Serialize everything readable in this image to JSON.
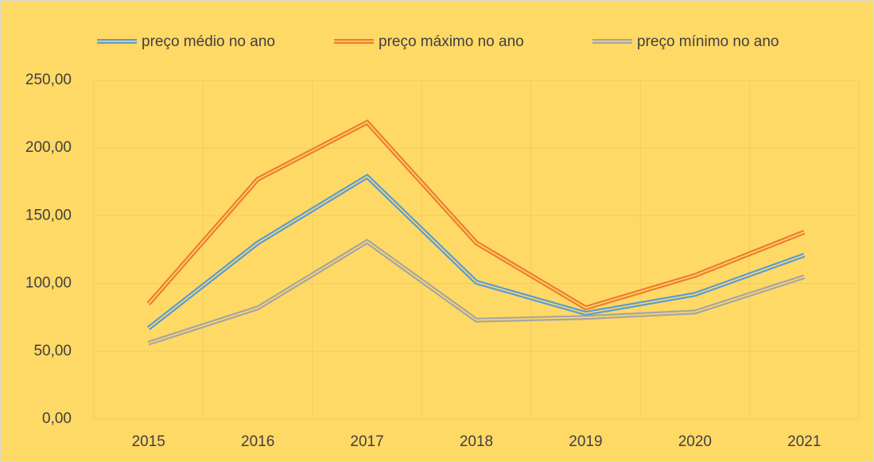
{
  "chart_data": {
    "type": "line",
    "categories": [
      "2015",
      "2016",
      "2017",
      "2018",
      "2019",
      "2020",
      "2021"
    ],
    "series": [
      {
        "name": "preço médio no ano",
        "color": "#5b9bd5",
        "values": [
          67,
          130,
          179,
          101,
          78,
          92,
          121
        ]
      },
      {
        "name": "preço máximo no ano",
        "color": "#ed7d31",
        "values": [
          85,
          177,
          219,
          130,
          82,
          106,
          138
        ]
      },
      {
        "name": "preço mínimo no ano",
        "color": "#a5a5a5",
        "values": [
          56,
          82,
          131,
          73,
          75,
          79,
          105
        ]
      }
    ],
    "ylim": [
      0,
      250
    ],
    "yticks": [
      {
        "value": 0,
        "label": "0,00"
      },
      {
        "value": 50,
        "label": "50,00"
      },
      {
        "value": 100,
        "label": "100,00"
      },
      {
        "value": 150,
        "label": "150,00"
      },
      {
        "value": 200,
        "label": "200,00"
      },
      {
        "value": 250,
        "label": "250,00"
      }
    ],
    "grid": true,
    "legend": "top"
  }
}
